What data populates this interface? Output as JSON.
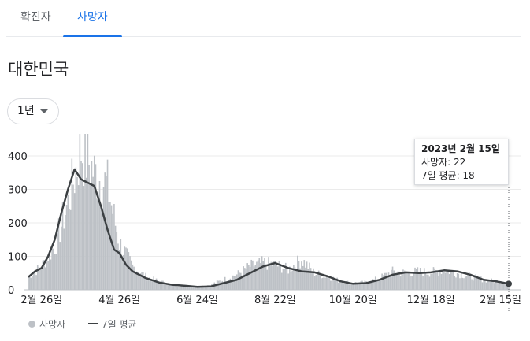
{
  "tabs": [
    {
      "label": "확진자",
      "selected": false
    },
    {
      "label": "사망자",
      "selected": true
    }
  ],
  "region": "대한민국",
  "period": {
    "selected": "1년"
  },
  "tooltip": {
    "date": "2023년 2월 15일",
    "deaths_text": "사망자: 22",
    "avg_text": "7일 평균: 18"
  },
  "legend": [
    {
      "label": "사망자",
      "icon": "dot-icon",
      "color": "#bdc1c6"
    },
    {
      "label": "7일 평균",
      "icon": "line-icon",
      "color": "#3c4043"
    }
  ],
  "chart_data": {
    "type": "bar",
    "series": [
      {
        "name": "사망자",
        "kind": "bar",
        "color": "#bdc1c6",
        "x": [
          "2022-02-16",
          "2022-02-26",
          "2022-03-08",
          "2022-03-18",
          "2022-03-28",
          "2022-04-07",
          "2022-04-17",
          "2022-04-26",
          "2022-05-06",
          "2022-05-16",
          "2022-05-26",
          "2022-06-05",
          "2022-06-15",
          "2022-06-24",
          "2022-07-04",
          "2022-07-14",
          "2022-07-24",
          "2022-08-03",
          "2022-08-13",
          "2022-08-22",
          "2022-09-01",
          "2022-09-11",
          "2022-09-21",
          "2022-10-01",
          "2022-10-11",
          "2022-10-20",
          "2022-10-30",
          "2022-11-09",
          "2022-11-19",
          "2022-11-29",
          "2022-12-09",
          "2022-12-18",
          "2022-12-28",
          "2023-01-07",
          "2023-01-17",
          "2023-01-27",
          "2023-02-06",
          "2023-02-15"
        ],
        "values": [
          40,
          70,
          130,
          260,
          420,
          350,
          310,
          140,
          70,
          40,
          25,
          15,
          10,
          9,
          15,
          30,
          45,
          70,
          80,
          75,
          60,
          90,
          50,
          40,
          25,
          20,
          22,
          35,
          55,
          50,
          55,
          52,
          60,
          50,
          40,
          30,
          25,
          22
        ]
      },
      {
        "name": "7일 평균",
        "kind": "line",
        "color": "#3c4043",
        "x": [
          "2022-02-16",
          "2022-02-21",
          "2022-02-26",
          "2022-03-03",
          "2022-03-08",
          "2022-03-13",
          "2022-03-18",
          "2022-03-23",
          "2022-03-28",
          "2022-04-02",
          "2022-04-07",
          "2022-04-12",
          "2022-04-17",
          "2022-04-22",
          "2022-04-26",
          "2022-05-01",
          "2022-05-06",
          "2022-05-16",
          "2022-05-26",
          "2022-06-05",
          "2022-06-15",
          "2022-06-24",
          "2022-07-04",
          "2022-07-14",
          "2022-07-24",
          "2022-08-03",
          "2022-08-13",
          "2022-08-22",
          "2022-09-01",
          "2022-09-11",
          "2022-09-21",
          "2022-10-01",
          "2022-10-11",
          "2022-10-20",
          "2022-10-30",
          "2022-11-09",
          "2022-11-19",
          "2022-11-29",
          "2022-12-09",
          "2022-12-18",
          "2022-12-28",
          "2023-01-07",
          "2023-01-17",
          "2023-01-27",
          "2023-02-06",
          "2023-02-15"
        ],
        "values": [
          38,
          55,
          65,
          100,
          150,
          230,
          300,
          360,
          330,
          320,
          310,
          250,
          180,
          120,
          110,
          75,
          55,
          35,
          22,
          15,
          12,
          9,
          10,
          20,
          30,
          50,
          70,
          80,
          65,
          55,
          52,
          40,
          25,
          18,
          20,
          30,
          45,
          52,
          50,
          52,
          58,
          55,
          45,
          30,
          25,
          18
        ]
      }
    ],
    "title": "",
    "xlabel": "",
    "ylabel": "",
    "x_ticks": [
      "2월 26일",
      "4월 26일",
      "6월 24일",
      "8월 22일",
      "10월 20일",
      "12월 18일",
      "2월 15일"
    ],
    "x_tick_dates": [
      "2022-02-26",
      "2022-04-26",
      "2022-06-24",
      "2022-08-22",
      "2022-10-20",
      "2022-12-18",
      "2023-02-15"
    ],
    "y_ticks": [
      0,
      100,
      200,
      300,
      400
    ],
    "ylim": [
      0,
      450
    ],
    "x_range": [
      "2022-02-16",
      "2023-02-15"
    ],
    "grid": true,
    "legend_position": "bottom-left"
  }
}
